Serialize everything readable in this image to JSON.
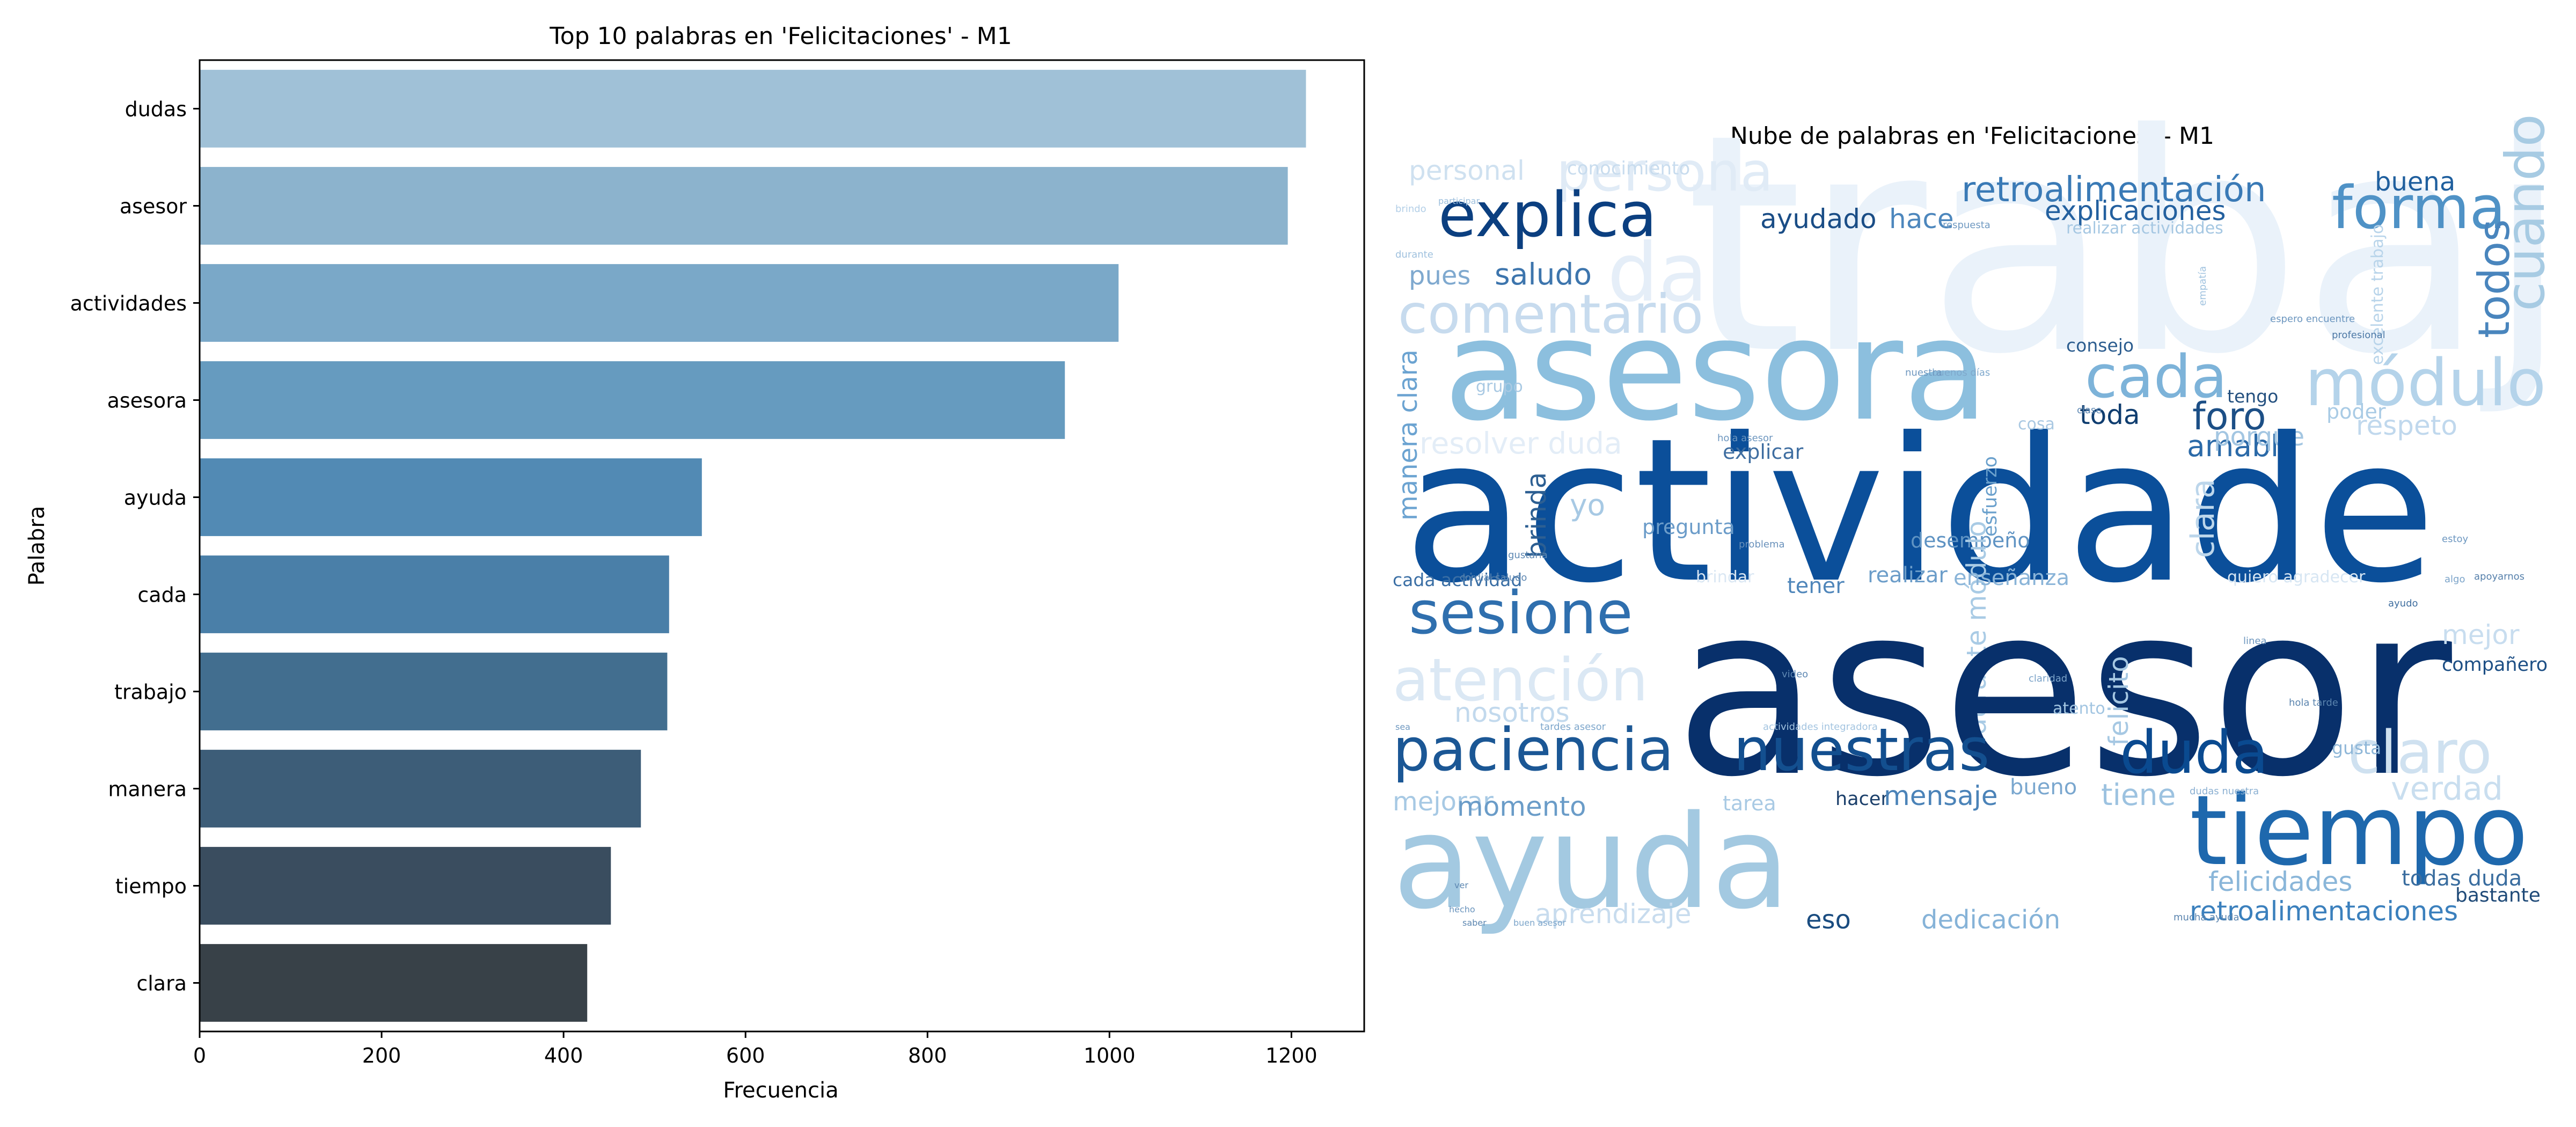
{
  "chart_data": [
    {
      "type": "bar",
      "orientation": "horizontal",
      "title": "Top 10 palabras en 'Felicitaciones' - M1",
      "xlabel": "Frecuencia",
      "ylabel": "Palabra",
      "categories": [
        "dudas",
        "asesor",
        "actividades",
        "asesora",
        "ayuda",
        "cada",
        "trabajo",
        "manera",
        "tiempo",
        "clara"
      ],
      "values": [
        1216,
        1196,
        1010,
        951,
        552,
        516,
        514,
        485,
        452,
        426
      ],
      "colors": [
        "#a0c1d7",
        "#8cb3cd",
        "#7aa8c8",
        "#669bbf",
        "#528ab4",
        "#4a7fa8",
        "#426e8f",
        "#3d5d78",
        "#3a4d5f",
        "#384148"
      ],
      "xlim": [
        0,
        1280
      ],
      "xticks": [
        0,
        200,
        400,
        600,
        800,
        1000,
        1200
      ],
      "grid": false,
      "legend": "none"
    },
    {
      "type": "wordcloud",
      "title": "Nube de palabras en 'Felicitaciones' - M1",
      "colormap": "Blues",
      "words": [
        {
          "text": "trabajo",
          "color": "#eaf2fa"
        },
        {
          "text": "persona",
          "color": "#e0ebf6"
        },
        {
          "text": "da",
          "color": "#e5eef8"
        },
        {
          "text": "personal",
          "color": "#cfe1f0"
        },
        {
          "text": "conocimiento",
          "color": "#c8dcee"
        },
        {
          "text": "retroalimentación",
          "color": "#3a7ab6"
        },
        {
          "text": "buena",
          "color": "#1f5f9e"
        },
        {
          "text": "forma",
          "color": "#4f92c6"
        },
        {
          "text": "explica",
          "color": "#0b3f80"
        },
        {
          "text": "ayudado",
          "color": "#1a4d86"
        },
        {
          "text": "hace",
          "color": "#4d87bd"
        },
        {
          "text": "explicaciones",
          "color": "#23609f"
        },
        {
          "text": "cuando",
          "color": "#a7cbe3"
        },
        {
          "text": "todos",
          "color": "#4985bd"
        },
        {
          "text": "pues",
          "color": "#7fa9cf"
        },
        {
          "text": "saludo",
          "color": "#3d75ad"
        },
        {
          "text": "comentario",
          "color": "#c7dbee"
        },
        {
          "text": "asesora",
          "color": "#8cbfde"
        },
        {
          "text": "cada",
          "color": "#7db3d9"
        },
        {
          "text": "módulo",
          "color": "#b4d3ea"
        },
        {
          "text": "toda",
          "color": "#0f3d6f"
        },
        {
          "text": "foro",
          "color": "#1c4f86"
        },
        {
          "text": "amable",
          "color": "#2b6aa8"
        },
        {
          "text": "respeto",
          "color": "#c0d8ed"
        },
        {
          "text": "resolver duda",
          "color": "#e3edf7"
        },
        {
          "text": "porque",
          "color": "#a3c6e2"
        },
        {
          "text": "actividade",
          "color": "#0b4f9a"
        },
        {
          "text": "manera clara",
          "color": "#6ba3d1"
        },
        {
          "text": "brinda",
          "color": "#2d5f92"
        },
        {
          "text": "yo",
          "color": "#a7c9e4"
        },
        {
          "text": "pregunta",
          "color": "#6b9cc9"
        },
        {
          "text": "desempeño",
          "color": "#5f93c3"
        },
        {
          "text": "explicar",
          "color": "#3f6ea1"
        },
        {
          "text": "durante módulo",
          "color": "#a9cbe5"
        },
        {
          "text": "esfuerzo",
          "color": "#6aa0cc"
        },
        {
          "text": "clara",
          "color": "#bcd6eb"
        },
        {
          "text": "sesione",
          "color": "#2f6fae"
        },
        {
          "text": "asesor",
          "color": "#08306b"
        },
        {
          "text": "cada actividad",
          "color": "#3b6fa5"
        },
        {
          "text": "tener",
          "color": "#4f86ba"
        },
        {
          "text": "realizar",
          "color": "#6c9dc9"
        },
        {
          "text": "enseñanza",
          "color": "#8ab4d8"
        },
        {
          "text": "atención",
          "color": "#dbe8f4"
        },
        {
          "text": "nosotros",
          "color": "#c2d9ed"
        },
        {
          "text": "mejor",
          "color": "#c8ddef"
        },
        {
          "text": "compañero",
          "color": "#1d4f85"
        },
        {
          "text": "felicito",
          "color": "#a6c8e3"
        },
        {
          "text": "paciencia",
          "color": "#1b5795"
        },
        {
          "text": "nuestras",
          "color": "#134f8f"
        },
        {
          "text": "duda",
          "color": "#0a4a90"
        },
        {
          "text": "claro",
          "color": "#cfe1f0"
        },
        {
          "text": "mejorar",
          "color": "#a7c9e4"
        },
        {
          "text": "momento",
          "color": "#6a9cc8"
        },
        {
          "text": "tarea",
          "color": "#a9cae4"
        },
        {
          "text": "hacer",
          "color": "#1b3f6a"
        },
        {
          "text": "mensaje",
          "color": "#4b83b8"
        },
        {
          "text": "bueno",
          "color": "#7aa7cf"
        },
        {
          "text": "tiene",
          "color": "#9cc2e0"
        },
        {
          "text": "verdad",
          "color": "#c9deef"
        },
        {
          "text": "tiempo",
          "color": "#1e68ad"
        },
        {
          "text": "ayuda",
          "color": "#a3c9e1"
        },
        {
          "text": "felicidades",
          "color": "#8ab6d9"
        },
        {
          "text": "todas duda",
          "color": "#3a6d9f"
        },
        {
          "text": "bastante",
          "color": "#1f4a78"
        },
        {
          "text": "retroalimentaciones",
          "color": "#3b80bd"
        },
        {
          "text": "aprendizaje",
          "color": "#c8dcee"
        },
        {
          "text": "eso",
          "color": "#1a4c80"
        },
        {
          "text": "dedicación",
          "color": "#86b3d8"
        },
        {
          "text": "gusta",
          "color": "#8fb7d8"
        },
        {
          "text": "atento",
          "color": "#a2c5e1"
        },
        {
          "text": "tengo",
          "color": "#24507f"
        },
        {
          "text": "poder",
          "color": "#a9cbe5"
        },
        {
          "text": "consejo",
          "color": "#2c5d8f"
        },
        {
          "text": "grupo",
          "color": "#a9c9e3"
        },
        {
          "text": "realizar actividades",
          "color": "#a5c7e2"
        },
        {
          "text": "excelente trabajo",
          "color": "#b8d4ea"
        },
        {
          "text": "buenos días",
          "color": "#7fa8cc"
        },
        {
          "text": "cosa",
          "color": "#a9c8e2"
        },
        {
          "text": "hola asesor",
          "color": "#6d96bf"
        },
        {
          "text": "cordial saludo",
          "color": "#5f88b2"
        },
        {
          "text": "brindar",
          "color": "#dae7f3"
        },
        {
          "text": "video",
          "color": "#5e88b3"
        },
        {
          "text": "hola tarde",
          "color": "#5a84ae"
        },
        {
          "text": "espero encuentre",
          "color": "#6c96bf"
        },
        {
          "text": "empatía",
          "color": "#9fc2df"
        },
        {
          "text": "profesional",
          "color": "#4d79a6"
        },
        {
          "text": "quiero agradecer",
          "color": "#d7e6f3"
        },
        {
          "text": "apoyarnos",
          "color": "#5680ab"
        },
        {
          "text": "algo",
          "color": "#7ca4c9"
        },
        {
          "text": "estoy",
          "color": "#6d97c0"
        },
        {
          "text": "ayudo",
          "color": "#3f6e9f"
        },
        {
          "text": "claridad",
          "color": "#7aa2c8"
        },
        {
          "text": "linea",
          "color": "#6d96be"
        },
        {
          "text": "clase",
          "color": "#5f89b4"
        },
        {
          "text": "nuestra",
          "color": "#6f98c0"
        },
        {
          "text": "hecho",
          "color": "#6a94bd"
        },
        {
          "text": "saber",
          "color": "#5c86b0"
        },
        {
          "text": "buen asesor",
          "color": "#7ca5ca"
        },
        {
          "text": "mucha ayuda",
          "color": "#5b85af"
        },
        {
          "text": "dudas nuestra",
          "color": "#8bb0d2"
        },
        {
          "text": "participar",
          "color": "#9cbfdd"
        },
        {
          "text": "brindo",
          "color": "#b3cfe7"
        },
        {
          "text": "durante",
          "color": "#9fc1de"
        },
        {
          "text": "tardes asesor",
          "color": "#7da6cb"
        },
        {
          "text": "actividades integradora",
          "color": "#a3c4e0"
        },
        {
          "text": "respuesta",
          "color": "#6f99c1"
        },
        {
          "text": "ver",
          "color": "#5d87b1"
        },
        {
          "text": "sea",
          "color": "#6f98c0"
        },
        {
          "text": "gustaria",
          "color": "#5f89b3"
        },
        {
          "text": "problema",
          "color": "#6991bb"
        }
      ]
    }
  ]
}
